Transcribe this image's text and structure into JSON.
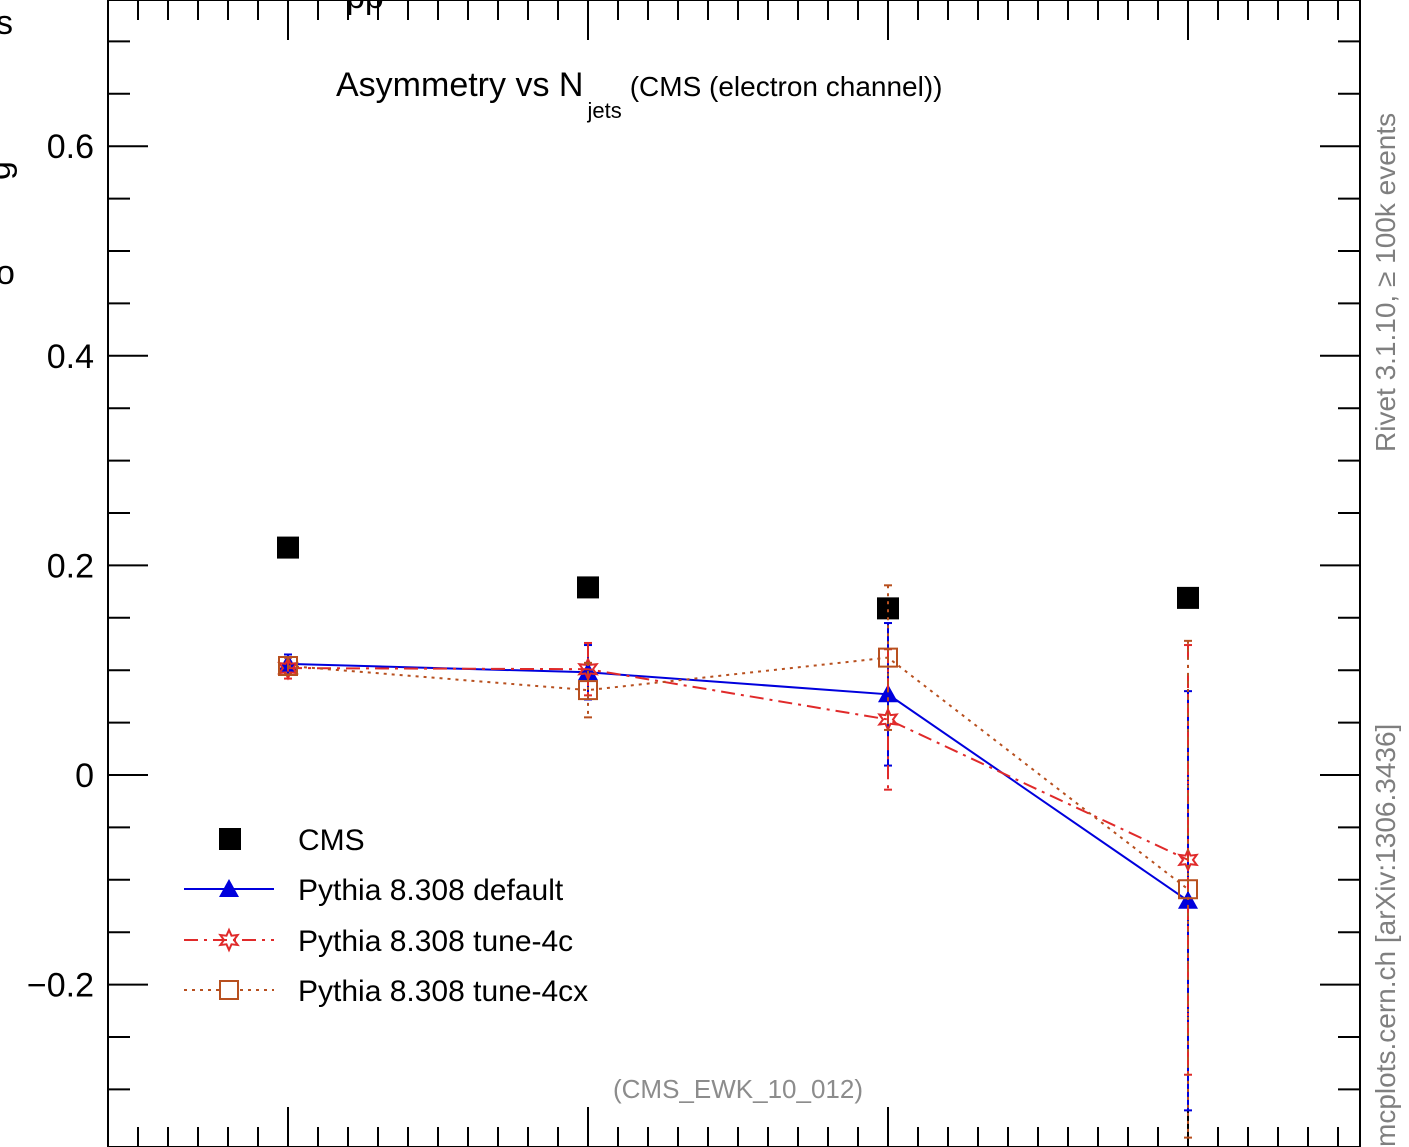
{
  "chart_data": {
    "type": "scatter",
    "title_main": "Asymmetry vs N",
    "title_sub": "jets",
    "title_tail": "(CMS (electron channel))",
    "watermark": "(CMS_EWK_10_012)",
    "side_label_top": "Rivet 3.1.10, ≥ 100k events",
    "side_label_bottom": "mcplots.cern.ch [arXiv:1306.3436]",
    "ylabel_fragment_1": "s",
    "ylabel_fragment_2": "g",
    "ylabel_fragment_3": "o",
    "top_cut_text": "pp",
    "ylim": [
      -0.335,
      0.735
    ],
    "xlim": [
      0.42,
      4.95
    ],
    "yticks": [
      {
        "v": 0.6,
        "label": "0.6"
      },
      {
        "v": 0.4,
        "label": "0.4"
      },
      {
        "v": 0.2,
        "label": "0.2"
      },
      {
        "v": 0.0,
        "label": "0"
      },
      {
        "v": -0.2,
        "label": "−0.2"
      }
    ],
    "major_x_positions": [
      1,
      2,
      3,
      4
    ],
    "series": [
      {
        "name": "CMS",
        "color": "#000000",
        "x": [
          1,
          2,
          3,
          4
        ],
        "y": [
          0.217,
          0.179,
          0.159,
          0.169
        ],
        "err": [
          0,
          0,
          0,
          0
        ]
      },
      {
        "name": "Pythia 8.308 default",
        "color": "#0000dd",
        "x": [
          1,
          2,
          3,
          4
        ],
        "y": [
          0.106,
          0.098,
          0.077,
          -0.12
        ],
        "err": [
          0.009,
          0.026,
          0.068,
          0.2
        ]
      },
      {
        "name": "Pythia 8.308 tune-4c",
        "color": "#e02a2a",
        "x": [
          1,
          2,
          3,
          4
        ],
        "y": [
          0.102,
          0.101,
          0.053,
          -0.081
        ],
        "err": [
          0.01,
          0.025,
          0.067,
          0.205
        ]
      },
      {
        "name": "Pythia 8.308 tune-4cx",
        "color": "#b8501f",
        "x": [
          1,
          2,
          3,
          4
        ],
        "y": [
          0.104,
          0.081,
          0.112,
          -0.109
        ],
        "err": [
          0.008,
          0.026,
          0.069,
          0.237
        ]
      }
    ]
  }
}
